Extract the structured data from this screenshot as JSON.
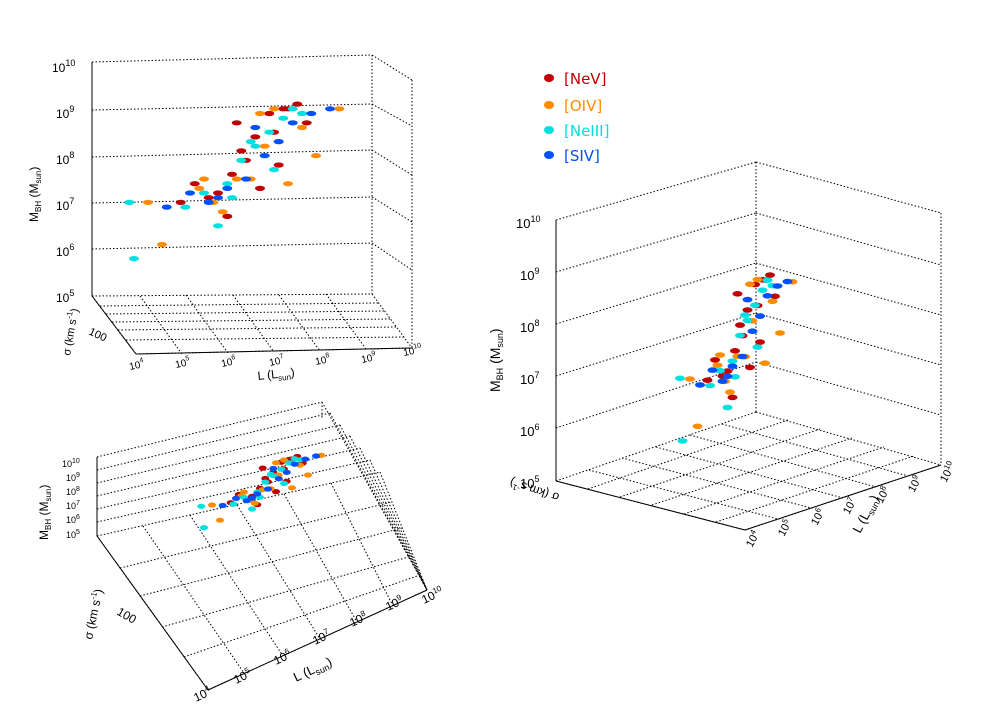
{
  "legend": [
    {
      "label": "[NeV]",
      "color": "#c00000"
    },
    {
      "label": "[OIV]",
      "color": "#ff8c00"
    },
    {
      "label": "[NeIII]",
      "color": "#00e0e0"
    },
    {
      "label": "[SIV]",
      "color": "#0050ff"
    }
  ],
  "axis_text": {
    "mbh_label": "M",
    "mbh_sub": "BH",
    "mbh_unit": "(M",
    "mbh_unit_sub": "sun",
    "close": ")",
    "l_label": "L (L",
    "sigma_label": "σ (km s",
    "sigma_sup": "-1",
    "sigma_tick": "100"
  },
  "chart_data": [
    {
      "type": "scatter",
      "view": "top-left",
      "title": "",
      "xlabel": "L (Lsun)",
      "ylabel": "MBH (Msun)",
      "zlabel": "σ (km s-1)",
      "xlim": [
        4,
        10
      ],
      "zlim": [
        5,
        10
      ],
      "x_ticks": [
        "10⁴",
        "10⁵",
        "10⁶",
        "10⁷",
        "10⁸",
        "10⁹",
        "10¹⁰"
      ],
      "z_ticks": [
        "10⁵",
        "10⁶",
        "10⁷",
        "10⁸",
        "10⁹",
        "10¹⁰"
      ],
      "y_ticks": [
        "100"
      ],
      "series": [
        {
          "name": "[NeV]",
          "x": [
            5.9,
            6.2,
            6.7,
            7.0,
            7.2,
            7.5,
            7.8,
            8.1,
            8.4,
            8.6,
            7.3,
            6.9,
            7.6,
            8.0,
            6.5,
            7.9,
            8.2,
            7.1
          ],
          "y": [
            7.0,
            7.4,
            7.2,
            7.6,
            8.1,
            8.4,
            8.9,
            9.0,
            9.1,
            8.7,
            7.9,
            6.7,
            7.3,
            7.8,
            7.1,
            8.5,
            9.0,
            8.7
          ]
        },
        {
          "name": "[OIV]",
          "x": [
            5.2,
            5.5,
            6.3,
            6.8,
            7.4,
            7.7,
            8.2,
            8.8,
            9.3,
            7.9,
            6.6,
            7.1,
            8.5,
            7.6,
            6.4,
            8.0
          ],
          "y": [
            7.0,
            6.1,
            7.3,
            6.8,
            7.5,
            8.2,
            7.4,
            8.0,
            9.0,
            9.0,
            7.0,
            7.5,
            8.6,
            8.9,
            7.5,
            8.3
          ]
        },
        {
          "name": "[NeIII]",
          "x": [
            4.8,
            4.9,
            6.0,
            6.4,
            6.9,
            7.2,
            7.5,
            7.8,
            8.1,
            8.3,
            7.0,
            6.7,
            7.9,
            8.5,
            7.4
          ],
          "y": [
            7.0,
            5.8,
            6.9,
            7.2,
            7.4,
            7.9,
            8.2,
            8.5,
            8.8,
            9.0,
            7.1,
            6.5,
            7.7,
            8.9,
            8.3
          ]
        },
        {
          "name": "[SIV]",
          "x": [
            5.6,
            6.1,
            6.5,
            6.9,
            7.3,
            7.7,
            8.0,
            8.7,
            9.1,
            7.5,
            6.7,
            8.3
          ],
          "y": [
            6.9,
            7.2,
            7.0,
            7.3,
            7.5,
            8.0,
            8.3,
            8.9,
            9.0,
            8.6,
            7.1,
            8.7
          ]
        }
      ]
    },
    {
      "type": "scatter",
      "view": "bottom-left",
      "title": "",
      "xlabel": "L (Lsun)",
      "ylabel": "MBH (Msun)",
      "zlabel": "σ (km s-1)",
      "xlim": [
        4,
        10
      ],
      "zlim": [
        5,
        10
      ],
      "x_ticks": [
        "10⁴",
        "10⁵",
        "10⁶",
        "10⁷",
        "10⁸",
        "10⁹",
        "10¹⁰"
      ],
      "z_ticks": [
        "10⁵",
        "10⁶",
        "10⁷",
        "10⁸",
        "10⁹",
        "10¹⁰"
      ],
      "y_ticks": [
        "100"
      ],
      "series": "same as top-left view"
    },
    {
      "type": "scatter",
      "view": "right",
      "title": "",
      "xlabel": "L (Lsun)",
      "ylabel": "MBH (Msun)",
      "zlabel": "σ (km s-1)",
      "xlim": [
        4,
        10
      ],
      "zlim": [
        5,
        10
      ],
      "x_ticks": [
        "10⁴",
        "10⁵",
        "10⁶",
        "10⁷",
        "10⁸",
        "10⁹",
        "10¹⁰"
      ],
      "z_ticks": [
        "10⁵",
        "10⁶",
        "10⁷",
        "10⁸",
        "10⁹",
        "10¹⁰"
      ],
      "y_ticks": [
        "100"
      ],
      "series": "same as top-left view"
    }
  ]
}
